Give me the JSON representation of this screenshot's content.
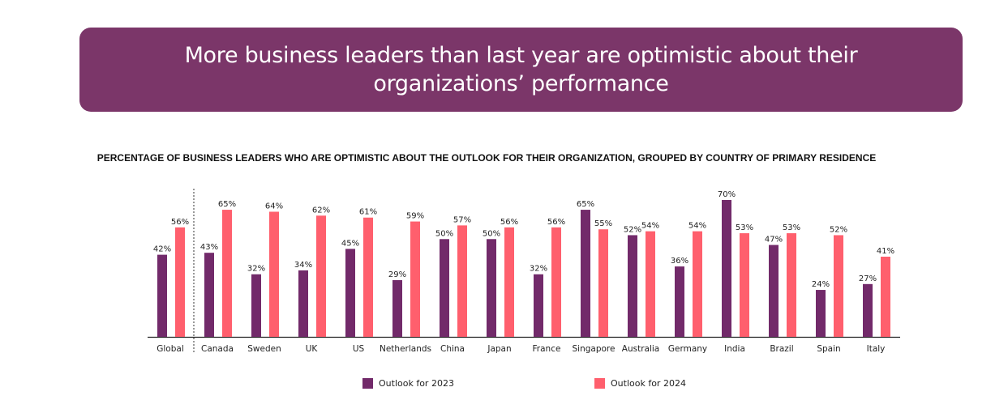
{
  "header": {
    "title": "More business leaders than last year are optimistic about their organizations’ performance"
  },
  "chart_data": {
    "type": "bar",
    "title": "PERCENTAGE OF BUSINESS LEADERS WHO ARE OPTIMISTIC ABOUT THE OUTLOOK FOR THEIR ORGANIZATION, GROUPED BY COUNTRY OF PRIMARY RESIDENCE",
    "categories": [
      "Global",
      "Canada",
      "Sweden",
      "UK",
      "US",
      "Netherlands",
      "China",
      "Japan",
      "France",
      "Singapore",
      "Australia",
      "Germany",
      "India",
      "Brazil",
      "Spain",
      "Italy"
    ],
    "series": [
      {
        "name": "Outlook for 2023",
        "color": "#722a6a",
        "values": [
          42,
          43,
          32,
          34,
          45,
          29,
          50,
          50,
          32,
          65,
          52,
          36,
          70,
          47,
          24,
          27
        ]
      },
      {
        "name": "Outlook for 2024",
        "color": "#ff5f6d",
        "values": [
          56,
          65,
          64,
          62,
          61,
          59,
          57,
          56,
          56,
          55,
          54,
          54,
          53,
          53,
          52,
          41
        ]
      }
    ],
    "value_suffix": "%",
    "ylim": [
      0,
      70
    ],
    "grid": false,
    "legend_position": "bottom",
    "separator_after": "Global"
  }
}
